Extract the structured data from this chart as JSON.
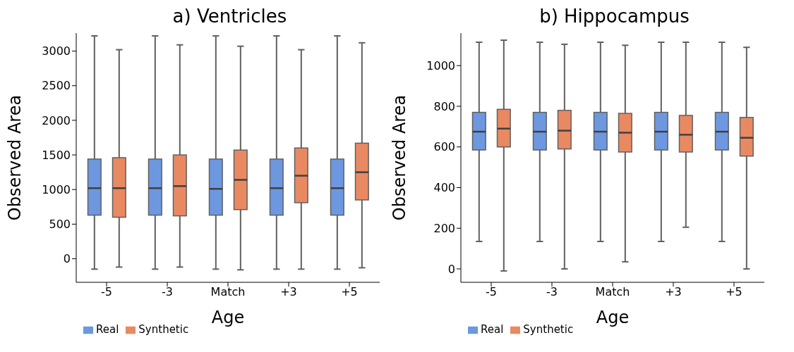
{
  "chart_data": [
    {
      "type": "box",
      "title": "a) Ventricles",
      "xlabel": "Age",
      "ylabel": "Observed Area",
      "categories": [
        "-5",
        "-3",
        "Match",
        "+3",
        "+5"
      ],
      "ylim": [
        -340,
        3260
      ],
      "yticks": [
        0,
        500,
        1000,
        1500,
        2000,
        2500,
        3000
      ],
      "legend": "bottom left",
      "series": [
        {
          "name": "Real",
          "color": "#6d98e0",
          "boxes": [
            {
              "low": -150,
              "q1": 630,
              "median": 1020,
              "q3": 1440,
              "high": 3220
            },
            {
              "low": -150,
              "q1": 630,
              "median": 1020,
              "q3": 1440,
              "high": 3220
            },
            {
              "low": -150,
              "q1": 630,
              "median": 1010,
              "q3": 1440,
              "high": 3220
            },
            {
              "low": -150,
              "q1": 630,
              "median": 1020,
              "q3": 1440,
              "high": 3220
            },
            {
              "low": -150,
              "q1": 630,
              "median": 1020,
              "q3": 1440,
              "high": 3220
            }
          ]
        },
        {
          "name": "Synthetic",
          "color": "#e98962",
          "boxes": [
            {
              "low": -120,
              "q1": 600,
              "median": 1020,
              "q3": 1460,
              "high": 3020
            },
            {
              "low": -120,
              "q1": 620,
              "median": 1050,
              "q3": 1500,
              "high": 3090
            },
            {
              "low": -160,
              "q1": 710,
              "median": 1140,
              "q3": 1570,
              "high": 3070
            },
            {
              "low": -150,
              "q1": 810,
              "median": 1200,
              "q3": 1600,
              "high": 3020
            },
            {
              "low": -130,
              "q1": 850,
              "median": 1250,
              "q3": 1670,
              "high": 3120
            }
          ]
        }
      ]
    },
    {
      "type": "box",
      "title": "b) Hippocampus",
      "xlabel": "Age",
      "ylabel": "Observed Area",
      "categories": [
        "-5",
        "-3",
        "Match",
        "+3",
        "+5"
      ],
      "ylim": [
        -66,
        1160
      ],
      "yticks": [
        0,
        200,
        400,
        600,
        800,
        1000
      ],
      "legend": "bottom left",
      "series": [
        {
          "name": "Real",
          "color": "#6d98e0",
          "boxes": [
            {
              "low": 135,
              "q1": 585,
              "median": 675,
              "q3": 770,
              "high": 1115
            },
            {
              "low": 135,
              "q1": 585,
              "median": 675,
              "q3": 770,
              "high": 1115
            },
            {
              "low": 135,
              "q1": 585,
              "median": 675,
              "q3": 770,
              "high": 1115
            },
            {
              "low": 135,
              "q1": 585,
              "median": 675,
              "q3": 770,
              "high": 1115
            },
            {
              "low": 135,
              "q1": 585,
              "median": 675,
              "q3": 770,
              "high": 1115
            }
          ]
        },
        {
          "name": "Synthetic",
          "color": "#e98962",
          "boxes": [
            {
              "low": -10,
              "q1": 600,
              "median": 690,
              "q3": 785,
              "high": 1125
            },
            {
              "low": 0,
              "q1": 590,
              "median": 680,
              "q3": 780,
              "high": 1105
            },
            {
              "low": 35,
              "q1": 575,
              "median": 670,
              "q3": 765,
              "high": 1100
            },
            {
              "low": 205,
              "q1": 575,
              "median": 660,
              "q3": 755,
              "high": 1115
            },
            {
              "low": 0,
              "q1": 555,
              "median": 645,
              "q3": 745,
              "high": 1090
            }
          ]
        }
      ]
    }
  ]
}
